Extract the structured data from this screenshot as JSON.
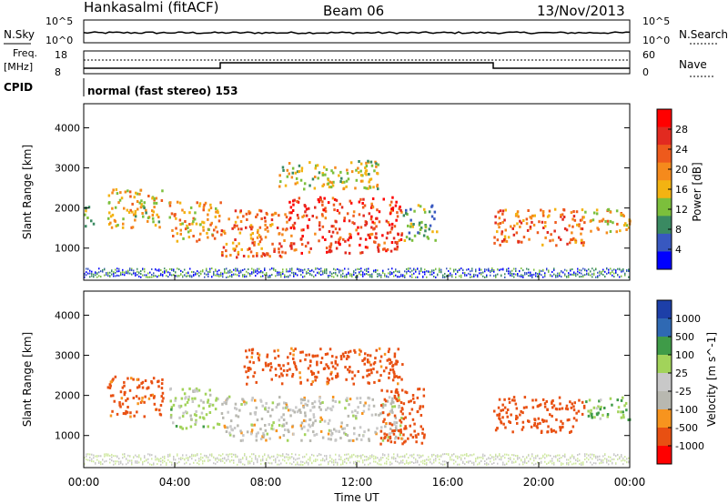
{
  "header": {
    "station": "Hankasalmi (fitACF)",
    "beam": "Beam 06",
    "date": "13/Nov/2013"
  },
  "sky_panel": {
    "left_label": "N.Sky",
    "right_label": "N.Search",
    "ticks": [
      "10^5",
      "10^0"
    ]
  },
  "freq_panel": {
    "left_label_1": "Freq.",
    "left_label_2": "[MHz]",
    "left_ticks": [
      "18",
      "8"
    ],
    "right_label": "Nave",
    "right_ticks": [
      "60",
      "0"
    ]
  },
  "cpid": {
    "label": "CPID",
    "text": "normal (fast stereo) 153"
  },
  "colors": {
    "power": [
      "#0000ff",
      "#3858c0",
      "#3a8a62",
      "#7cbf3c",
      "#f3b312",
      "#f58a1c",
      "#ee5a1c",
      "#e22a20",
      "#ff0000"
    ],
    "velocity": [
      "#ff0000",
      "#e85012",
      "#f7941e",
      "#b8b8b0",
      "#c8c8c8",
      "#a2d35a",
      "#3f9b48",
      "#2f69b3",
      "#1d3fa8"
    ],
    "noise": "#7a7a7a"
  },
  "chart_data": [
    {
      "type": "heatmap",
      "name": "power",
      "xlabel": "Time UT",
      "ylabel": "Slant Range [km]",
      "x_ticks": [
        "00:00",
        "04:00",
        "08:00",
        "12:00",
        "16:00",
        "20:00",
        "00:00"
      ],
      "xlim_hours": [
        0,
        24
      ],
      "ylim": [
        200,
        4600
      ],
      "y_ticks": [
        1000,
        2000,
        3000,
        4000
      ],
      "colorbar_label": "Power [dB]",
      "colorbar_ticks": [
        "4",
        "8",
        "12",
        "16",
        "20",
        "24",
        "28"
      ],
      "colorbar_range": [
        0,
        32
      ],
      "regions": [
        {
          "t": [
            0.0,
            0.4
          ],
          "r": [
            1500,
            2100
          ],
          "level": 12
        },
        {
          "t": [
            1.0,
            3.5
          ],
          "r": [
            1500,
            2500
          ],
          "level": 16
        },
        {
          "t": [
            3.7,
            6.0
          ],
          "r": [
            1200,
            2200
          ],
          "level": 18
        },
        {
          "t": [
            6.0,
            9.0
          ],
          "r": [
            800,
            2000
          ],
          "level": 22
        },
        {
          "t": [
            9.0,
            14.0
          ],
          "r": [
            900,
            2300
          ],
          "level": 26
        },
        {
          "t": [
            14.0,
            15.5
          ],
          "r": [
            1200,
            2100
          ],
          "level": 10
        },
        {
          "t": [
            18.0,
            22.0
          ],
          "r": [
            1100,
            2000
          ],
          "level": 22
        },
        {
          "t": [
            22.0,
            24.0
          ],
          "r": [
            1400,
            2000
          ],
          "level": 16
        },
        {
          "t": [
            8.5,
            13.0
          ],
          "r": [
            2500,
            3200
          ],
          "level": 14
        }
      ]
    },
    {
      "type": "heatmap",
      "name": "velocity",
      "xlabel": "Time UT",
      "ylabel": "Slant Range [km]",
      "x_ticks": [
        "00:00",
        "04:00",
        "08:00",
        "12:00",
        "16:00",
        "20:00",
        "00:00"
      ],
      "xlim_hours": [
        0,
        24
      ],
      "ylim": [
        200,
        4600
      ],
      "y_ticks": [
        1000,
        2000,
        3000,
        4000
      ],
      "colorbar_label": "Velocity [m s^-1]",
      "colorbar_ticks": [
        "1000",
        "500",
        "100",
        "25",
        "-25",
        "-100",
        "-500",
        "-1000"
      ],
      "regions": [
        {
          "t": [
            1.0,
            3.5
          ],
          "r": [
            1500,
            2500
          ],
          "value": -200
        },
        {
          "t": [
            3.7,
            6.0
          ],
          "r": [
            1200,
            2200
          ],
          "value": 50
        },
        {
          "t": [
            6.0,
            14.0
          ],
          "r": [
            900,
            2000
          ],
          "value": 0
        },
        {
          "t": [
            13.0,
            15.0
          ],
          "r": [
            800,
            2200
          ],
          "value": -300
        },
        {
          "t": [
            18.0,
            22.0
          ],
          "r": [
            1100,
            2000
          ],
          "value": -300
        },
        {
          "t": [
            22.0,
            24.0
          ],
          "r": [
            1400,
            2000
          ],
          "value": 100
        },
        {
          "t": [
            7.0,
            14.0
          ],
          "r": [
            2300,
            3200
          ],
          "value": -200
        }
      ]
    }
  ]
}
